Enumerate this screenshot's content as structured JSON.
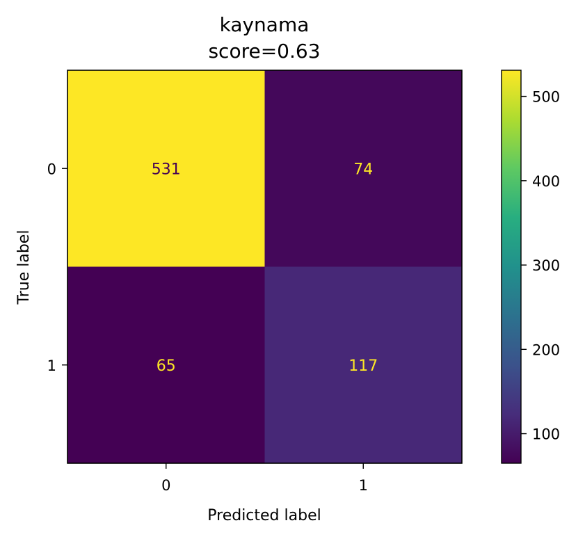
{
  "chart_data": {
    "type": "heatmap",
    "title_line1": "kaynama",
    "title_line2": "score=0.63",
    "xlabel": "Predicted label",
    "ylabel": "True label",
    "x_categories": [
      "0",
      "1"
    ],
    "y_categories": [
      "0",
      "1"
    ],
    "matrix": [
      [
        531,
        74
      ],
      [
        65,
        117
      ]
    ],
    "colormap": "viridis",
    "colorbar": {
      "min": 65,
      "max": 531,
      "ticks": [
        100,
        200,
        300,
        400,
        500
      ]
    },
    "colors": {
      "low": "#440154",
      "high": "#fde725"
    }
  }
}
